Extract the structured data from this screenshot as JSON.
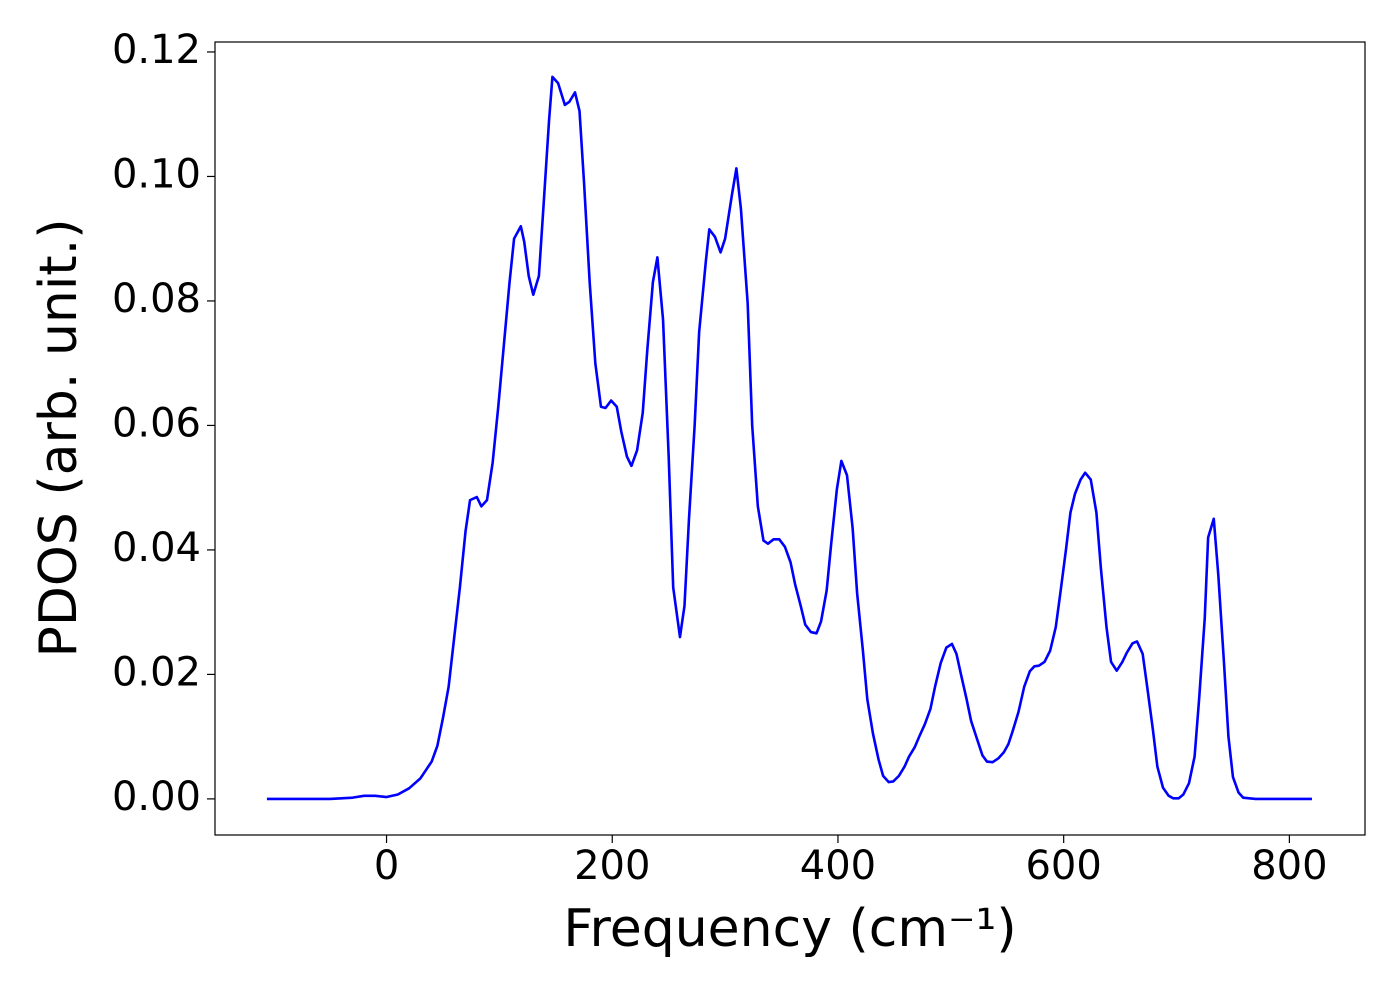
{
  "chart_data": {
    "type": "line",
    "xlabel": "Frequency (cm⁻¹)",
    "ylabel": "PDOS (arb. unit.)",
    "x": [
      -106,
      -50,
      -30,
      -20,
      -10,
      0,
      10,
      20,
      30,
      40,
      45,
      50,
      55,
      60,
      65,
      70,
      74,
      80,
      84,
      89,
      94,
      99,
      104,
      109,
      113,
      119,
      122,
      126,
      130,
      135,
      139,
      144,
      147,
      152,
      158,
      162,
      167,
      171,
      175,
      180,
      185,
      190,
      194,
      199,
      204,
      208,
      213,
      217,
      222,
      227,
      231,
      236,
      240,
      245,
      250,
      254,
      260,
      264,
      268,
      273,
      277,
      283,
      286,
      291,
      296,
      300,
      306,
      310,
      314,
      320,
      324,
      329,
      334,
      338,
      343,
      348,
      353,
      358,
      362,
      367,
      371,
      376,
      381,
      385,
      390,
      394,
      399,
      403,
      408,
      413,
      417,
      422,
      426,
      431,
      436,
      440,
      445,
      449,
      454,
      459,
      463,
      468,
      472,
      477,
      482,
      486,
      491,
      496,
      501,
      505,
      509,
      514,
      518,
      524,
      528,
      532,
      537,
      542,
      547,
      551,
      555,
      560,
      565,
      570,
      574,
      578,
      583,
      588,
      593,
      597,
      602,
      606,
      610,
      615,
      619,
      624,
      629,
      633,
      638,
      642,
      647,
      652,
      656,
      661,
      665,
      670,
      674,
      679,
      683,
      688,
      693,
      697,
      702,
      706,
      711,
      716,
      720,
      725,
      728,
      733,
      737,
      742,
      746,
      750,
      755,
      759,
      770,
      820
    ],
    "series": [
      {
        "name": "PDOS",
        "color": "#0000ff",
        "values": [
          0,
          0,
          0.0002,
          0.0005,
          0.0005,
          0.0003,
          0.0007,
          0.0017,
          0.0033,
          0.006,
          0.0085,
          0.013,
          0.018,
          0.026,
          0.034,
          0.043,
          0.048,
          0.0485,
          0.047,
          0.048,
          0.054,
          0.063,
          0.073,
          0.083,
          0.09,
          0.092,
          0.0895,
          0.084,
          0.081,
          0.084,
          0.095,
          0.109,
          0.116,
          0.115,
          0.1115,
          0.112,
          0.1135,
          0.1105,
          0.099,
          0.083,
          0.07,
          0.063,
          0.0628,
          0.064,
          0.063,
          0.059,
          0.055,
          0.0535,
          0.056,
          0.062,
          0.072,
          0.083,
          0.087,
          0.077,
          0.055,
          0.034,
          0.026,
          0.031,
          0.045,
          0.06,
          0.075,
          0.0865,
          0.0915,
          0.0903,
          0.0878,
          0.09,
          0.097,
          0.1013,
          0.0948,
          0.0796,
          0.06,
          0.047,
          0.0415,
          0.041,
          0.0417,
          0.0417,
          0.0405,
          0.038,
          0.0345,
          0.031,
          0.028,
          0.0268,
          0.0266,
          0.0285,
          0.0335,
          0.041,
          0.0497,
          0.0543,
          0.052,
          0.0435,
          0.033,
          0.024,
          0.016,
          0.0105,
          0.0063,
          0.0037,
          0.0027,
          0.0028,
          0.0037,
          0.0052,
          0.0068,
          0.0083,
          0.01,
          0.012,
          0.0145,
          0.018,
          0.0218,
          0.0243,
          0.0249,
          0.0233,
          0.02,
          0.016,
          0.0125,
          0.0092,
          0.007,
          0.006,
          0.0059,
          0.0065,
          0.0075,
          0.0088,
          0.011,
          0.014,
          0.018,
          0.0205,
          0.0213,
          0.0214,
          0.022,
          0.0238,
          0.0276,
          0.033,
          0.04,
          0.046,
          0.049,
          0.0513,
          0.0524,
          0.0513,
          0.046,
          0.037,
          0.0275,
          0.022,
          0.0206,
          0.022,
          0.0235,
          0.025,
          0.0253,
          0.0233,
          0.018,
          0.0112,
          0.0052,
          0.0018,
          0.0005,
          0.0001,
          0.0001,
          0.0007,
          0.0025,
          0.0068,
          0.016,
          0.029,
          0.042,
          0.045,
          0.036,
          0.022,
          0.01,
          0.0035,
          0.001,
          0.0002,
          0,
          0
        ]
      }
    ],
    "xlim": [
      -152,
      867
    ],
    "ylim": [
      -0.0058,
      0.1216
    ],
    "xticks": [
      0,
      200,
      400,
      600,
      800
    ],
    "yticks": [
      {
        "value": 0,
        "label": "0.00"
      },
      {
        "value": 0.02,
        "label": "0.02"
      },
      {
        "value": 0.04,
        "label": "0.04"
      },
      {
        "value": 0.06,
        "label": "0.06"
      },
      {
        "value": 0.08,
        "label": "0.08"
      },
      {
        "value": 0.1,
        "label": "0.10"
      },
      {
        "value": 0.12,
        "label": "0.12"
      }
    ]
  }
}
